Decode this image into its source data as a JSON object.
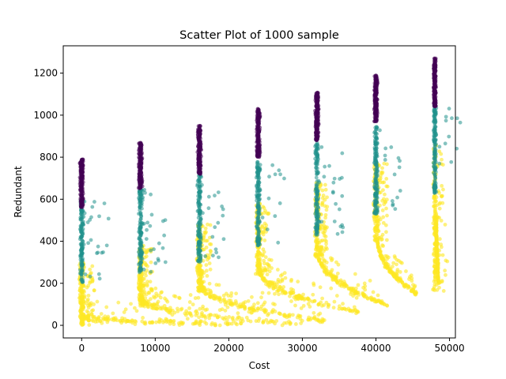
{
  "chart_data": {
    "type": "scatter",
    "title": "Scatter Plot of 1000 sample",
    "xlabel": "Cost",
    "ylabel": "Redundant",
    "xlim": [
      -2500,
      50800
    ],
    "ylim": [
      -60,
      1330
    ],
    "xticks": [
      {
        "value": 0,
        "label": "0"
      },
      {
        "value": 10000,
        "label": "10000"
      },
      {
        "value": 20000,
        "label": "20000"
      },
      {
        "value": 30000,
        "label": "30000"
      },
      {
        "value": 40000,
        "label": "40000"
      },
      {
        "value": 50000,
        "label": "50000"
      }
    ],
    "yticks": [
      {
        "value": 0,
        "label": "0"
      },
      {
        "value": 200,
        "label": "200"
      },
      {
        "value": 400,
        "label": "400"
      },
      {
        "value": 600,
        "label": "600"
      },
      {
        "value": 800,
        "label": "800"
      },
      {
        "value": 1000,
        "label": "1000"
      },
      {
        "value": 1200,
        "label": "1200"
      }
    ],
    "grid": false,
    "legend": "none",
    "colors": {
      "purple": "#440154",
      "teal": "#21918c",
      "yellow": "#fde725"
    },
    "clusters": [
      {
        "x": 0,
        "x_spread": 700,
        "purple": [
          560,
          790
        ],
        "teal": [
          200,
          600
        ],
        "yellow": [
          0,
          300
        ],
        "tail_x_end": 22000,
        "tail_y_start": 40,
        "tail_y_end": 5
      },
      {
        "x": 8000,
        "x_spread": 700,
        "purple": [
          650,
          870
        ],
        "teal": [
          250,
          650
        ],
        "yellow": [
          90,
          380
        ],
        "tail_x_end": 30000,
        "tail_y_start": 120,
        "tail_y_end": 5
      },
      {
        "x": 16000,
        "x_spread": 700,
        "purple": [
          720,
          950
        ],
        "teal": [
          300,
          720
        ],
        "yellow": [
          160,
          480
        ],
        "tail_x_end": 33000,
        "tail_y_start": 190,
        "tail_y_end": 20
      },
      {
        "x": 24000,
        "x_spread": 700,
        "purple": [
          800,
          1030
        ],
        "teal": [
          380,
          780
        ],
        "yellow": [
          240,
          580
        ],
        "tail_x_end": 38000,
        "tail_y_start": 260,
        "tail_y_end": 60
      },
      {
        "x": 32000,
        "x_spread": 700,
        "purple": [
          880,
          1110
        ],
        "teal": [
          420,
          870
        ],
        "yellow": [
          320,
          680
        ],
        "tail_x_end": 42000,
        "tail_y_start": 340,
        "tail_y_end": 90
      },
      {
        "x": 40000,
        "x_spread": 700,
        "purple": [
          970,
          1190
        ],
        "teal": [
          530,
          950
        ],
        "yellow": [
          400,
          770
        ],
        "tail_x_end": 45500,
        "tail_y_start": 410,
        "tail_y_end": 150
      },
      {
        "x": 48000,
        "x_spread": 500,
        "purple": [
          1040,
          1270
        ],
        "teal": [
          630,
          1050
        ],
        "yellow": [
          160,
          860
        ],
        "tail_x_end": 48500,
        "tail_y_start": 480,
        "tail_y_end": 200
      }
    ]
  }
}
